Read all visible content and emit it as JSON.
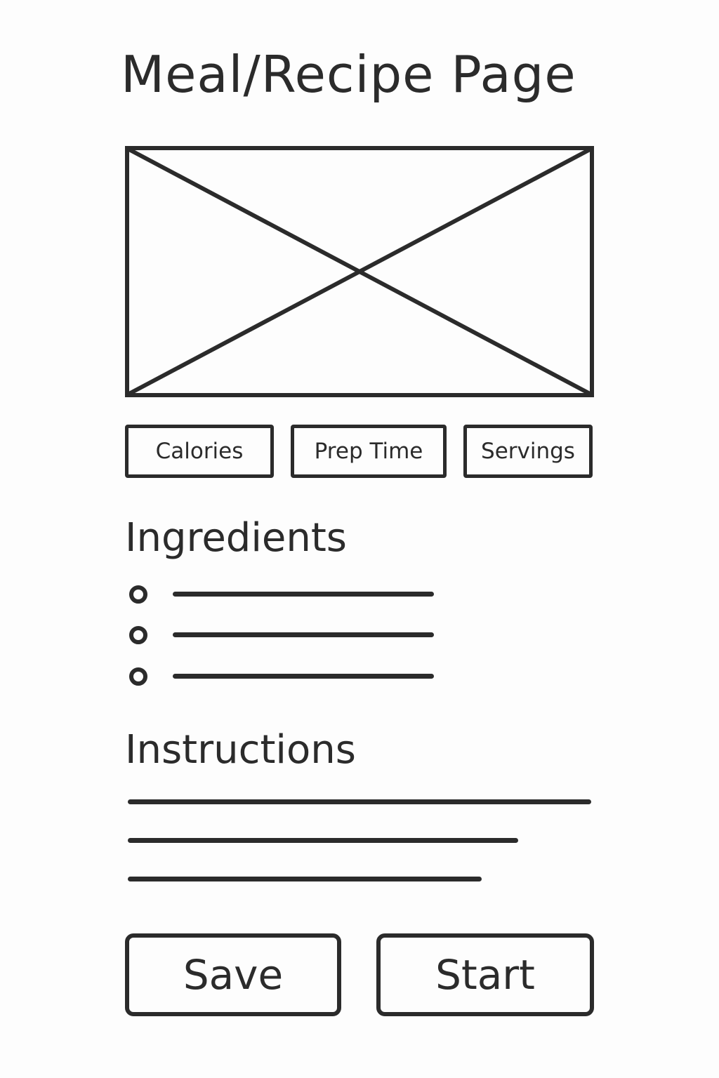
{
  "page": {
    "title": "Meal/Recipe Page"
  },
  "stats": {
    "calories_label": "Calories",
    "prep_time_label": "Prep Time",
    "servings_label": "Servings"
  },
  "ingredients": {
    "heading": "Ingredients"
  },
  "instructions": {
    "heading": "Instructions"
  },
  "actions": {
    "save_label": "Save",
    "start_label": "Start"
  },
  "colors": {
    "ink": "#2b2b2b",
    "paper": "#fdfdfd"
  }
}
